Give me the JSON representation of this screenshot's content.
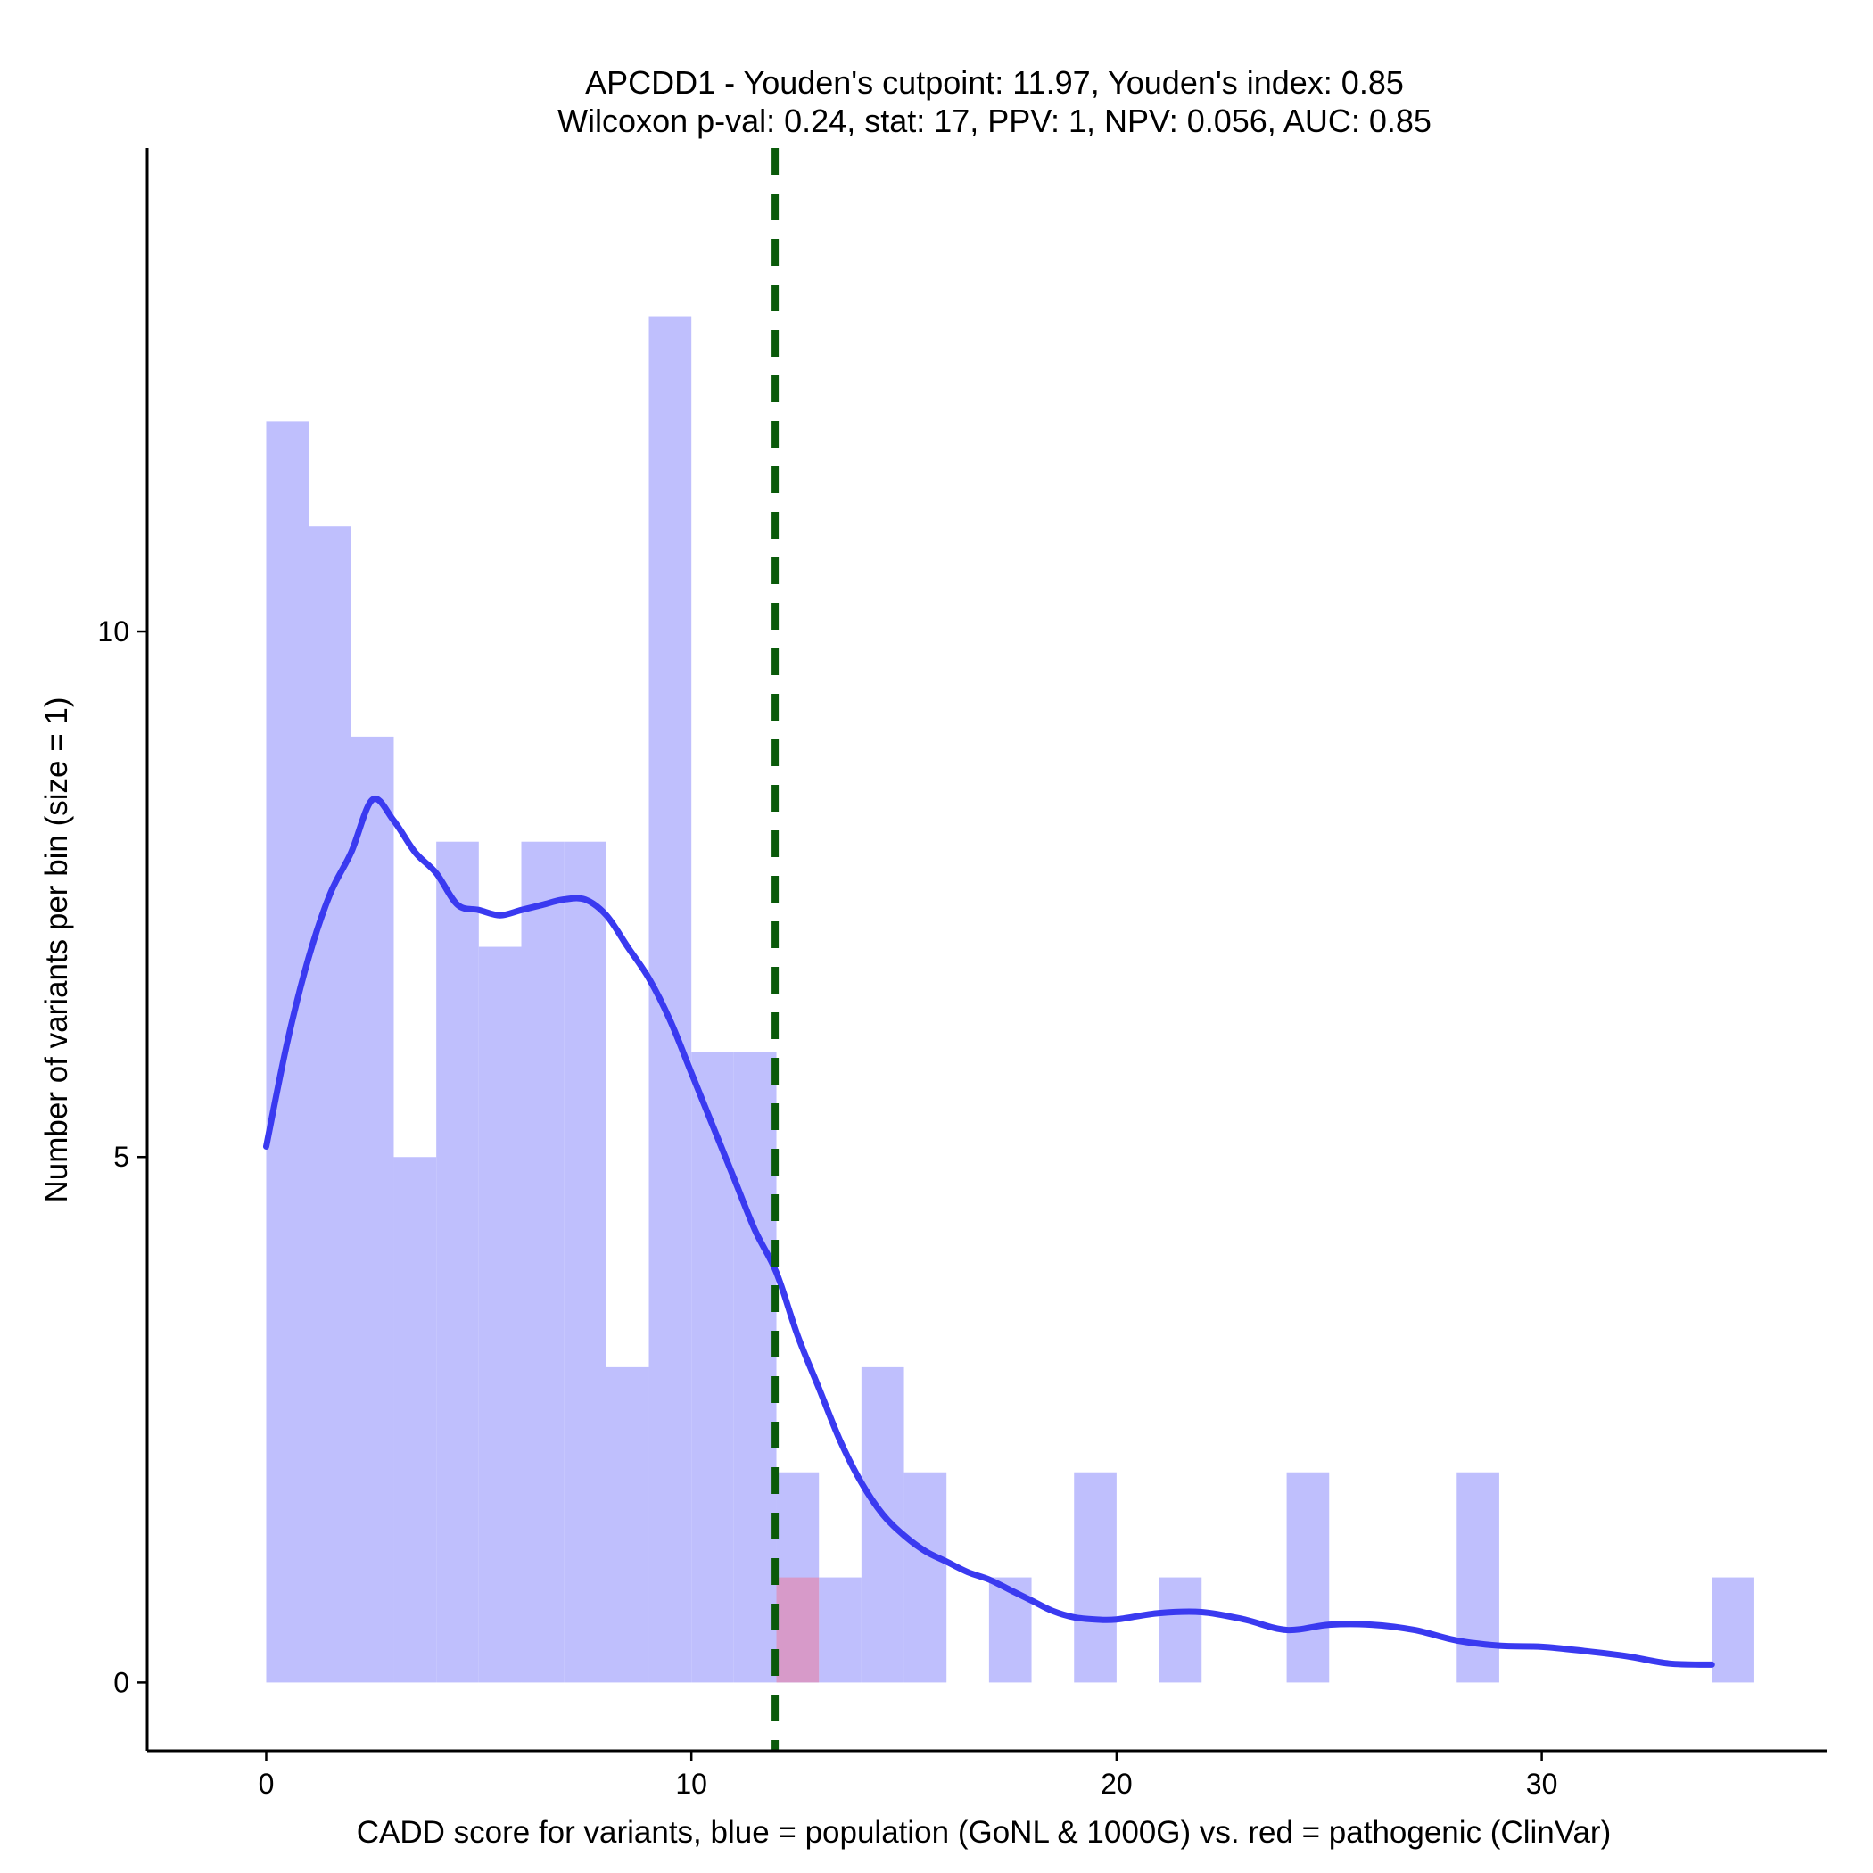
{
  "chart_data": {
    "type": "histogram",
    "title_line1": "APCDD1 - Youden's cutpoint: 11.97, Youden's index: 0.85",
    "title_line2": "Wilcoxon p-val: 0.24, stat: 17, PPV: 1, NPV: 0.056, AUC: 0.85",
    "xlabel": "CADD score for variants, blue = population (GoNL & 1000G) vs. red = pathogenic (ClinVar)",
    "ylabel": "Number of variants per bin (size = 1)",
    "xlim": [
      -2.8,
      36.7
    ],
    "ylim": [
      -0.65,
      14.6
    ],
    "x_ticks": [
      0,
      10,
      20,
      30
    ],
    "y_ticks": [
      0,
      5,
      10
    ],
    "bin_width": 1,
    "cutpoint": 11.97,
    "colors": {
      "population": "#bfbffd",
      "pathogenic": "#d898c6",
      "density": "#3a3af0",
      "cutpoint": "#0a5a0a"
    },
    "series": [
      {
        "name": "population",
        "bin_starts": [
          0,
          1,
          2,
          3,
          4,
          5,
          6,
          7,
          8,
          9,
          10,
          11,
          12,
          13,
          14,
          15,
          16,
          17,
          18,
          19,
          20,
          21,
          22,
          23,
          24,
          25,
          26,
          27,
          28,
          29,
          30,
          31,
          32,
          33,
          34
        ],
        "counts": [
          12,
          11,
          9,
          5,
          8,
          7,
          8,
          8,
          3,
          13,
          6,
          6,
          2,
          1,
          3,
          2,
          0,
          1,
          0,
          2,
          0,
          1,
          0,
          0,
          2,
          0,
          0,
          0,
          2,
          0,
          0,
          0,
          0,
          0,
          1
        ]
      },
      {
        "name": "pathogenic",
        "bin_starts": [
          12
        ],
        "counts": [
          1
        ]
      }
    ],
    "density_curve": {
      "name": "population density",
      "x": [
        0,
        0.5,
        1,
        1.5,
        2,
        2.5,
        3,
        3.5,
        4,
        4.5,
        5,
        5.5,
        6,
        6.5,
        7,
        7.5,
        8,
        8.5,
        9,
        9.5,
        10,
        10.5,
        11,
        11.5,
        12,
        12.5,
        13,
        13.5,
        14,
        14.5,
        15,
        15.5,
        16,
        16.5,
        17,
        17.5,
        18,
        18.5,
        19,
        19.5,
        20,
        21,
        22,
        23,
        24,
        25,
        26,
        27,
        28,
        29,
        30,
        31,
        32,
        33,
        34
      ],
      "y": [
        5.1,
        6.1,
        6.9,
        7.5,
        7.9,
        8.4,
        8.2,
        7.9,
        7.7,
        7.4,
        7.35,
        7.3,
        7.35,
        7.4,
        7.45,
        7.45,
        7.3,
        7.0,
        6.7,
        6.3,
        5.8,
        5.3,
        4.8,
        4.3,
        3.9,
        3.3,
        2.8,
        2.3,
        1.9,
        1.6,
        1.4,
        1.25,
        1.15,
        1.05,
        0.98,
        0.88,
        0.78,
        0.68,
        0.62,
        0.6,
        0.6,
        0.66,
        0.67,
        0.6,
        0.5,
        0.55,
        0.55,
        0.5,
        0.4,
        0.35,
        0.34,
        0.3,
        0.25,
        0.18,
        0.17
      ]
    }
  }
}
